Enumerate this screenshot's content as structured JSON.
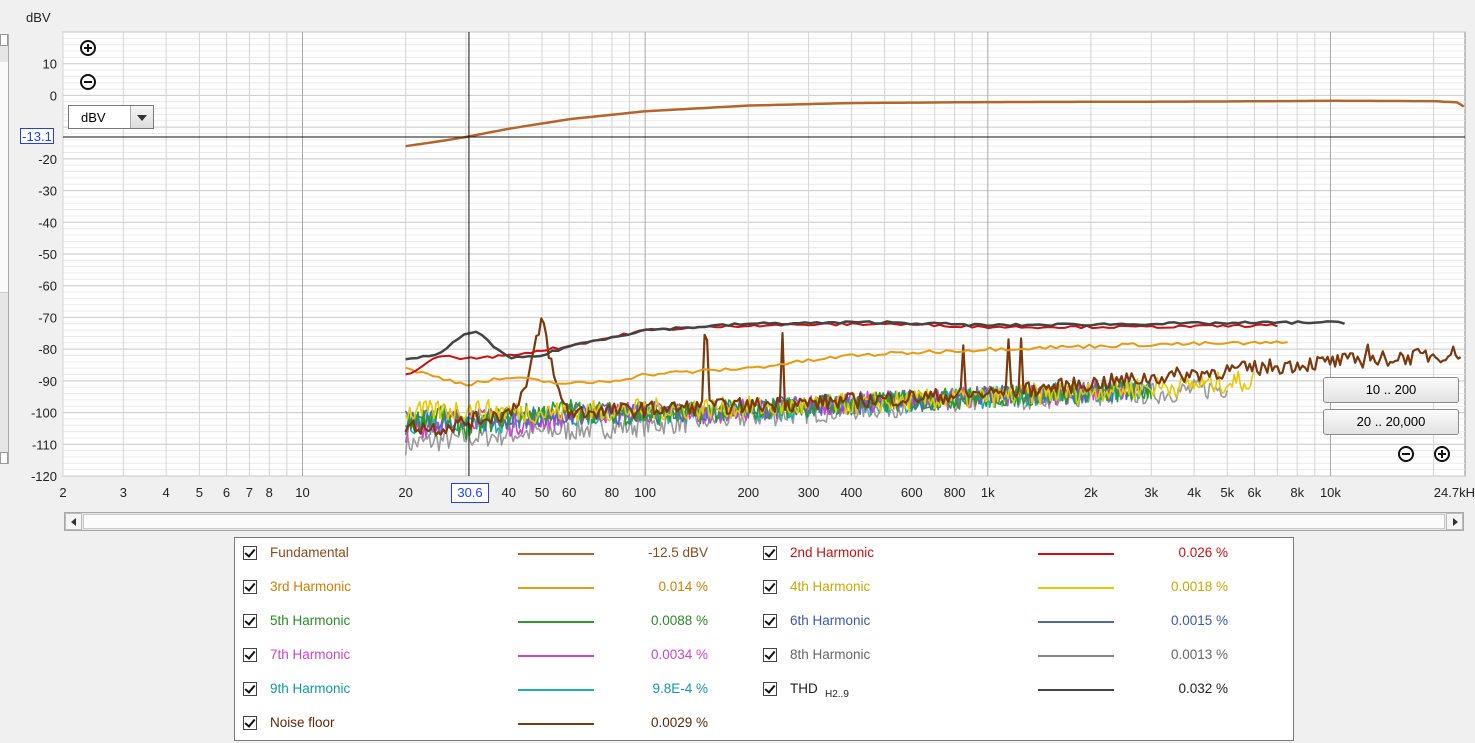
{
  "y_unit_label": "dBV",
  "unit_select_value": "dBV",
  "cursor": {
    "y_value": "-13.1",
    "x_value": "30.6"
  },
  "zoom_buttons": {
    "range_low": "10 .. 200",
    "range_full": "20 .. 20,000"
  },
  "icons": {
    "zoom_in": "zoom-in-icon",
    "zoom_out": "zoom-out-icon"
  },
  "chart_data": {
    "type": "line",
    "ylabel": "dBV",
    "ylim": [
      -120,
      20
    ],
    "xlim": [
      2,
      24700
    ],
    "xscale": "log",
    "grid": true,
    "y_ticks": [
      10,
      0,
      -20,
      -30,
      -40,
      -50,
      -60,
      -70,
      -80,
      -90,
      -100,
      -110,
      -120
    ],
    "x_ticks": [
      {
        "v": 2,
        "t": "2"
      },
      {
        "v": 3,
        "t": "3"
      },
      {
        "v": 4,
        "t": "4"
      },
      {
        "v": 5,
        "t": "5"
      },
      {
        "v": 6,
        "t": "6"
      },
      {
        "v": 7,
        "t": "7"
      },
      {
        "v": 8,
        "t": "8"
      },
      {
        "v": 10,
        "t": "10"
      },
      {
        "v": 20,
        "t": "20"
      },
      {
        "v": 40,
        "t": "40"
      },
      {
        "v": 50,
        "t": "50"
      },
      {
        "v": 60,
        "t": "60"
      },
      {
        "v": 80,
        "t": "80"
      },
      {
        "v": 100,
        "t": "100"
      },
      {
        "v": 200,
        "t": "200"
      },
      {
        "v": 300,
        "t": "300"
      },
      {
        "v": 400,
        "t": "400"
      },
      {
        "v": 600,
        "t": "600"
      },
      {
        "v": 800,
        "t": "800"
      },
      {
        "v": 1000,
        "t": "1k"
      },
      {
        "v": 2000,
        "t": "2k"
      },
      {
        "v": 3000,
        "t": "3k"
      },
      {
        "v": 4000,
        "t": "4k"
      },
      {
        "v": 5000,
        "t": "5k"
      },
      {
        "v": 6000,
        "t": "6k"
      },
      {
        "v": 8000,
        "t": "8k"
      },
      {
        "v": 10000,
        "t": "10k"
      },
      {
        "v": 24700,
        "t": "24.7kH"
      }
    ],
    "cursor": {
      "x": 30.6,
      "y": -13.1
    },
    "series": [
      {
        "name": "Fundamental",
        "color": "#b5642c",
        "points": [
          [
            20,
            -16
          ],
          [
            25,
            -14.5
          ],
          [
            30,
            -13.1
          ],
          [
            40,
            -10.5
          ],
          [
            60,
            -7.5
          ],
          [
            100,
            -5
          ],
          [
            200,
            -3.2
          ],
          [
            400,
            -2.4
          ],
          [
            1000,
            -2.1
          ],
          [
            5000,
            -1.9
          ],
          [
            10000,
            -1.7
          ],
          [
            20000,
            -1.8
          ],
          [
            23500,
            -2.2
          ],
          [
            24500,
            -3.5
          ]
        ]
      },
      {
        "name": "2nd Harmonic",
        "color": "#cc1010",
        "points": [
          [
            20,
            -88
          ],
          [
            22,
            -86
          ],
          [
            25,
            -82
          ],
          [
            30,
            -83
          ],
          [
            40,
            -82
          ],
          [
            60,
            -79
          ],
          [
            100,
            -74
          ],
          [
            200,
            -72.5
          ],
          [
            500,
            -72
          ],
          [
            1000,
            -73
          ],
          [
            3000,
            -73
          ],
          [
            7000,
            -72.5
          ]
        ]
      },
      {
        "name": "3rd Harmonic",
        "color": "#e89a10",
        "points": [
          [
            20,
            -86
          ],
          [
            25,
            -89
          ],
          [
            30,
            -91
          ],
          [
            40,
            -89
          ],
          [
            60,
            -91
          ],
          [
            80,
            -90
          ],
          [
            100,
            -88
          ],
          [
            200,
            -86
          ],
          [
            400,
            -82
          ],
          [
            1000,
            -80
          ],
          [
            3000,
            -78.5
          ],
          [
            7500,
            -78
          ]
        ]
      },
      {
        "name": "4th Harmonic",
        "color": "#e8c800",
        "points": [
          [
            20,
            -100
          ],
          [
            30,
            -99
          ],
          [
            50,
            -100
          ],
          [
            100,
            -99
          ],
          [
            300,
            -98
          ],
          [
            1000,
            -95
          ],
          [
            3000,
            -92
          ],
          [
            6000,
            -90
          ]
        ]
      },
      {
        "name": "5th Harmonic",
        "color": "#2a9a2a",
        "points": [
          [
            20,
            -104
          ],
          [
            25,
            -100
          ],
          [
            30,
            -105
          ],
          [
            40,
            -101
          ],
          [
            60,
            -99
          ],
          [
            100,
            -101
          ],
          [
            300,
            -98
          ],
          [
            1000,
            -95
          ],
          [
            3000,
            -93
          ]
        ]
      },
      {
        "name": "6th Harmonic",
        "color": "#4a6ab8",
        "points": [
          [
            20,
            -102
          ],
          [
            30,
            -103
          ],
          [
            50,
            -101
          ],
          [
            100,
            -100
          ],
          [
            300,
            -98
          ],
          [
            1000,
            -95
          ],
          [
            3000,
            -93
          ]
        ]
      },
      {
        "name": "7th Harmonic",
        "color": "#cc44cc",
        "points": [
          [
            20,
            -106
          ],
          [
            30,
            -101
          ],
          [
            40,
            -104
          ],
          [
            70,
            -100
          ],
          [
            150,
            -100
          ],
          [
            400,
            -97
          ],
          [
            1000,
            -95
          ],
          [
            2500,
            -93
          ]
        ]
      },
      {
        "name": "8th Harmonic",
        "color": "#9a9a9a",
        "points": [
          [
            20,
            -110
          ],
          [
            30,
            -108
          ],
          [
            50,
            -106
          ],
          [
            100,
            -104
          ],
          [
            300,
            -100
          ],
          [
            1000,
            -96
          ],
          [
            3000,
            -94
          ],
          [
            5000,
            -92
          ]
        ]
      },
      {
        "name": "9th Harmonic",
        "color": "#18b0b0",
        "points": [
          [
            20,
            -103
          ],
          [
            30,
            -104
          ],
          [
            60,
            -101
          ],
          [
            150,
            -100
          ],
          [
            500,
            -97
          ],
          [
            1500,
            -94
          ],
          [
            3000,
            -93
          ]
        ]
      },
      {
        "name": "THD H2..9",
        "color": "#444444",
        "points": [
          [
            20,
            -83
          ],
          [
            25,
            -82
          ],
          [
            28,
            -77
          ],
          [
            32,
            -74
          ],
          [
            36,
            -79
          ],
          [
            40,
            -83
          ],
          [
            50,
            -82
          ],
          [
            60,
            -79
          ],
          [
            100,
            -74
          ],
          [
            200,
            -72
          ],
          [
            500,
            -71.5
          ],
          [
            1000,
            -72.5
          ],
          [
            3000,
            -72
          ],
          [
            10000,
            -71.5
          ],
          [
            11000,
            -72
          ]
        ]
      },
      {
        "name": "Noise floor",
        "color": "#7a3a0e",
        "points": [
          [
            20,
            -104
          ],
          [
            25,
            -105
          ],
          [
            30,
            -103
          ],
          [
            40,
            -100
          ],
          [
            45,
            -92
          ],
          [
            50,
            -70
          ],
          [
            55,
            -92
          ],
          [
            60,
            -100
          ],
          [
            100,
            -99
          ],
          [
            300,
            -97
          ],
          [
            1000,
            -94
          ],
          [
            3000,
            -89
          ],
          [
            6000,
            -86
          ],
          [
            10000,
            -84
          ],
          [
            20000,
            -82
          ],
          [
            24000,
            -81
          ]
        ]
      }
    ]
  },
  "legend": [
    {
      "name": "Fundamental",
      "value": "-12.5 dBV",
      "color": "#b5642c",
      "text_color": "#8a4a1a"
    },
    {
      "name": "2nd Harmonic",
      "value": "0.026 %",
      "color": "#cc1010",
      "text_color": "#cc1010"
    },
    {
      "name": "3rd Harmonic",
      "value": "0.014 %",
      "color": "#e89a10",
      "text_color": "#d08000"
    },
    {
      "name": "4th Harmonic",
      "value": "0.0018 %",
      "color": "#e8c800",
      "text_color": "#c8a800"
    },
    {
      "name": "5th Harmonic",
      "value": "0.0088 %",
      "color": "#2a9a2a",
      "text_color": "#2a8a2a"
    },
    {
      "name": "6th Harmonic",
      "value": "0.0015 %",
      "color": "#4a6ab8",
      "text_color": "#3a5aa8"
    },
    {
      "name": "7th Harmonic",
      "value": "0.0034 %",
      "color": "#cc44cc",
      "text_color": "#cc44cc"
    },
    {
      "name": "8th Harmonic",
      "value": "0.0013 %",
      "color": "#888888",
      "text_color": "#666666"
    },
    {
      "name": "9th Harmonic",
      "value": "9.8E-4 %",
      "color": "#18b0b0",
      "text_color": "#109a9a"
    },
    {
      "name": "THD",
      "sub": "H2..9",
      "value": "0.032 %",
      "color": "#444444",
      "text_color": "#222222"
    },
    {
      "name": "Noise floor",
      "value": "0.0029 %",
      "color": "#7a3a0e",
      "text_color": "#5a2a0a"
    }
  ]
}
